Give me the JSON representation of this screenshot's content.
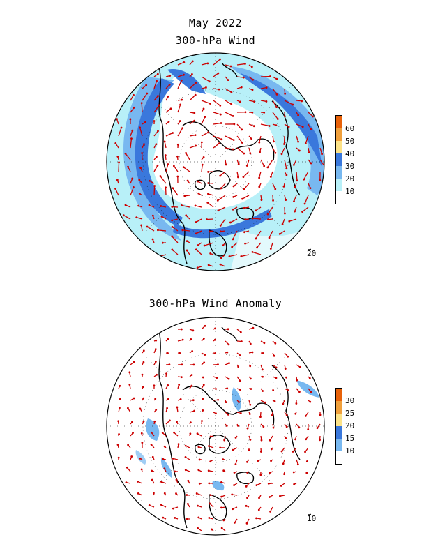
{
  "titles": {
    "main": "May 2022",
    "wind": "300-hPa Wind",
    "anomaly": "300-hPa Wind Anomaly"
  },
  "colorbars": {
    "wind": {
      "labels": [
        "60",
        "50",
        "40",
        "30",
        "20",
        "10"
      ],
      "colors": [
        "#e8620a",
        "#f0a03c",
        "#fce287",
        "#3a78dc",
        "#78b8f0",
        "#b8f0f8",
        "#ffffff"
      ]
    },
    "anomaly": {
      "labels": [
        "30",
        "25",
        "20",
        "15",
        "10"
      ],
      "colors": [
        "#e8620a",
        "#f0a03c",
        "#fce287",
        "#3a78dc",
        "#78b8f0",
        "#ffffff"
      ]
    }
  },
  "reference_vectors": {
    "wind": "20",
    "anomaly": "10"
  },
  "colors": {
    "vector": "#cc0000",
    "coast": "#000000",
    "light_shade": "#b8f0f8",
    "mid_shade": "#78b8f0",
    "dark_shade": "#3a78dc"
  },
  "icons": {
    "map": "polar-stereographic-map",
    "vector": "wind-arrow"
  }
}
